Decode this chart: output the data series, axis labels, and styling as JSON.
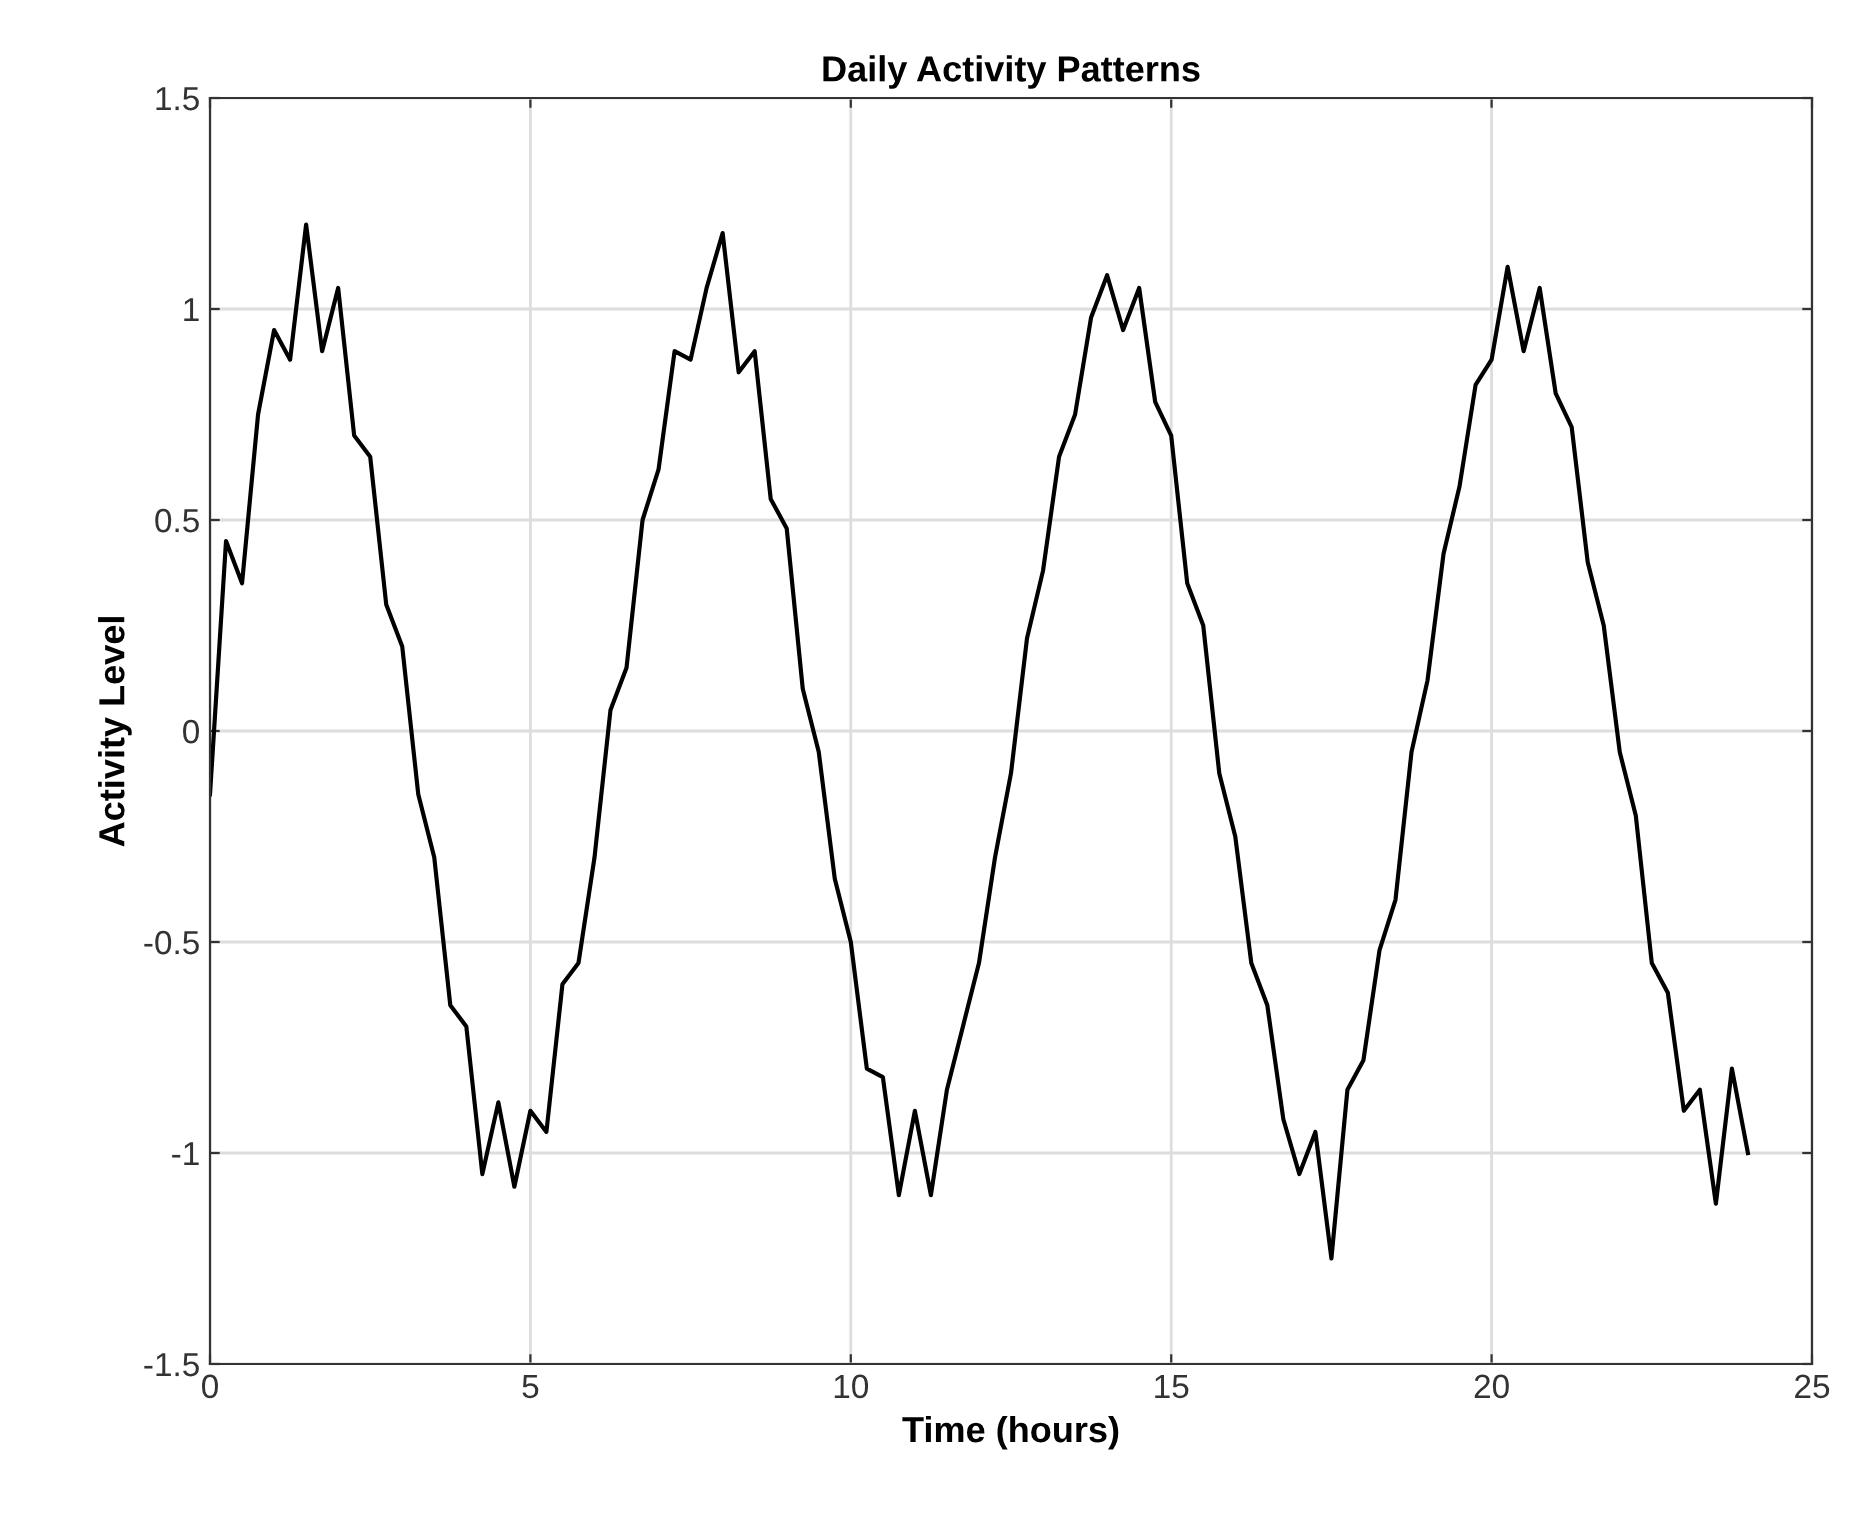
{
  "chart_data": {
    "type": "line",
    "title": "Daily Activity Patterns",
    "xlabel": "Time (hours)",
    "ylabel": "Activity Level",
    "x": [
      0,
      0.25,
      0.5,
      0.75,
      1,
      1.25,
      1.5,
      1.75,
      2,
      2.25,
      2.5,
      2.75,
      3,
      3.25,
      3.5,
      3.75,
      4,
      4.25,
      4.5,
      4.75,
      5,
      5.25,
      5.5,
      5.75,
      6,
      6.25,
      6.5,
      6.75,
      7,
      7.25,
      7.5,
      7.75,
      8,
      8.25,
      8.5,
      8.75,
      9,
      9.25,
      9.5,
      9.75,
      10,
      10.25,
      10.5,
      10.75,
      11,
      11.25,
      11.5,
      11.75,
      12,
      12.25,
      12.5,
      12.75,
      13,
      13.25,
      13.5,
      13.75,
      14,
      14.25,
      14.5,
      14.75,
      15,
      15.25,
      15.5,
      15.75,
      16,
      16.25,
      16.5,
      16.75,
      17,
      17.25,
      17.5,
      17.75,
      18,
      18.25,
      18.5,
      18.75,
      19,
      19.25,
      19.5,
      19.75,
      20,
      20.25,
      20.5,
      20.75,
      21,
      21.25,
      21.5,
      21.75,
      22,
      22.25,
      22.5,
      22.75,
      23,
      23.25,
      23.5,
      23.75,
      24
    ],
    "series": [
      {
        "color": "#000000",
        "values": [
          -0.15,
          0.45,
          0.35,
          0.75,
          0.95,
          0.88,
          1.2,
          0.9,
          1.05,
          0.7,
          0.65,
          0.3,
          0.2,
          -0.15,
          -0.3,
          -0.65,
          -0.7,
          -1.05,
          -0.88,
          -1.08,
          -0.9,
          -0.95,
          -0.6,
          -0.55,
          -0.3,
          0.05,
          0.15,
          0.5,
          0.62,
          0.9,
          0.88,
          1.05,
          1.18,
          0.85,
          0.9,
          0.55,
          0.48,
          0.1,
          -0.05,
          -0.35,
          -0.5,
          -0.8,
          -0.82,
          -1.1,
          -0.9,
          -1.1,
          -0.85,
          -0.7,
          -0.55,
          -0.3,
          -0.1,
          0.22,
          0.38,
          0.65,
          0.75,
          0.98,
          1.08,
          0.95,
          1.05,
          0.78,
          0.7,
          0.35,
          0.25,
          -0.1,
          -0.25,
          -0.55,
          -0.65,
          -0.92,
          -1.05,
          -0.95,
          -1.25,
          -0.85,
          -0.78,
          -0.52,
          -0.4,
          -0.05,
          0.12,
          0.42,
          0.58,
          0.82,
          0.88,
          1.1,
          0.9,
          1.05,
          0.8,
          0.72,
          0.4,
          0.25,
          -0.05,
          -0.2,
          -0.55,
          -0.62,
          -0.9,
          -0.85,
          -1.12,
          -0.8,
          -1.0
        ]
      }
    ],
    "xlim": [
      0,
      25
    ],
    "xticks": [
      0,
      5,
      10,
      15,
      20,
      25
    ],
    "ylim": [
      -1.5,
      1.5
    ],
    "yticks": [
      -1.5,
      -1,
      -0.5,
      0,
      0.5,
      1,
      1.5
    ],
    "grid": true,
    "marker": "none",
    "line_style": "solid"
  }
}
